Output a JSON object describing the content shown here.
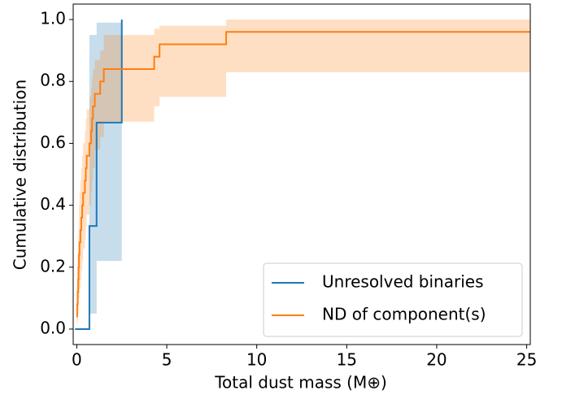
{
  "chart_data": {
    "type": "step",
    "xlabel": "Total dust mass (M⊕)",
    "ylabel": "Cumulative distribution",
    "xlim": [
      -0.2,
      25.2
    ],
    "ylim": [
      -0.05,
      1.05
    ],
    "xticks": [
      0,
      5,
      10,
      15,
      20,
      25
    ],
    "yticks": [
      {
        "value": 0,
        "label": "0.0"
      },
      {
        "value": 0.2,
        "label": "0.2"
      },
      {
        "value": 0.4,
        "label": "0.4"
      },
      {
        "value": 0.6,
        "label": "0.6"
      },
      {
        "value": 0.8,
        "label": "0.8"
      },
      {
        "value": 1,
        "label": "1.0"
      }
    ],
    "legend": "lower right",
    "series": [
      {
        "name": "Unresolved binaries",
        "color": "#1f77b4",
        "x": [
          -0.1,
          0.7,
          1.1,
          2.5
        ],
        "values": [
          0,
          0.333,
          0.667,
          1.0
        ],
        "lower": [
          0,
          0.05,
          0.22,
          1.0
        ],
        "upper": [
          0,
          0.95,
          0.99,
          1.0
        ]
      },
      {
        "name": "ND of component(s)",
        "color": "#ff7f0e",
        "x": [
          0,
          0.02,
          0.05,
          0.08,
          0.1,
          0.12,
          0.15,
          0.2,
          0.25,
          0.3,
          0.35,
          0.45,
          0.5,
          0.55,
          0.7,
          0.8,
          0.85,
          0.9,
          1.0,
          1.3,
          1.5,
          4.3,
          4.6,
          8.3,
          25.2
        ],
        "values": [
          0.04,
          0.08,
          0.12,
          0.16,
          0.2,
          0.24,
          0.28,
          0.32,
          0.36,
          0.4,
          0.44,
          0.48,
          0.52,
          0.56,
          0.6,
          0.64,
          0.68,
          0.72,
          0.76,
          0.8,
          0.84,
          0.88,
          0.92,
          0.96,
          0.96
        ],
        "lower": [
          0.01,
          0.02,
          0.03,
          0.05,
          0.07,
          0.1,
          0.13,
          0.16,
          0.19,
          0.22,
          0.26,
          0.29,
          0.33,
          0.37,
          0.4,
          0.44,
          0.48,
          0.52,
          0.58,
          0.62,
          0.67,
          0.72,
          0.75,
          0.83,
          0.83
        ],
        "upper": [
          0.15,
          0.2,
          0.25,
          0.3,
          0.35,
          0.4,
          0.44,
          0.48,
          0.52,
          0.56,
          0.6,
          0.64,
          0.68,
          0.71,
          0.75,
          0.78,
          0.81,
          0.84,
          0.87,
          0.9,
          0.95,
          0.97,
          0.98,
          1.0,
          1.0
        ]
      }
    ]
  }
}
